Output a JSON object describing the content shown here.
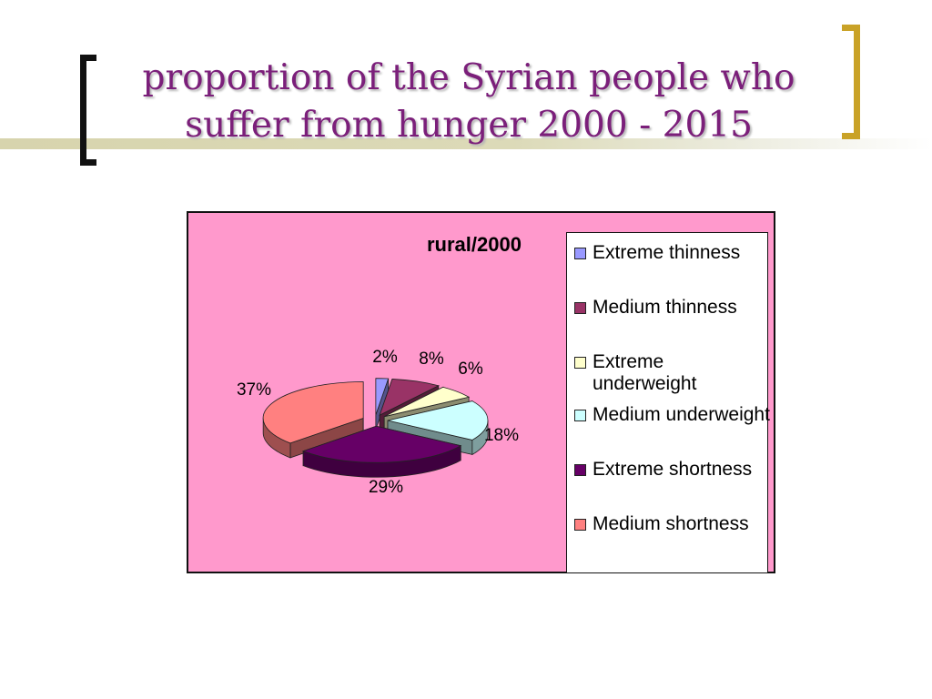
{
  "slide": {
    "title": "proportion of the Syrian people who suffer from hunger 2000 - 2015"
  },
  "chart_data": {
    "type": "pie",
    "title": "rural/2000",
    "legend_placement": "right",
    "series": [
      {
        "name": "Extreme thinness",
        "value": 2,
        "label": "2%",
        "color": "#9999ff"
      },
      {
        "name": "Medium thinness",
        "value": 8,
        "label": "8%",
        "color": "#993366"
      },
      {
        "name": "Extreme underweight",
        "value": 6,
        "label": "6%",
        "color": "#ffffcc"
      },
      {
        "name": "Medium underweight",
        "value": 18,
        "label": "18%",
        "color": "#ccffff"
      },
      {
        "name": "Extreme shortness",
        "value": 29,
        "label": "29%",
        "color": "#660066"
      },
      {
        "name": "Medium shortness",
        "value": 37,
        "label": "37%",
        "color": "#ff8080"
      }
    ],
    "background_color": "#ff99cc"
  }
}
